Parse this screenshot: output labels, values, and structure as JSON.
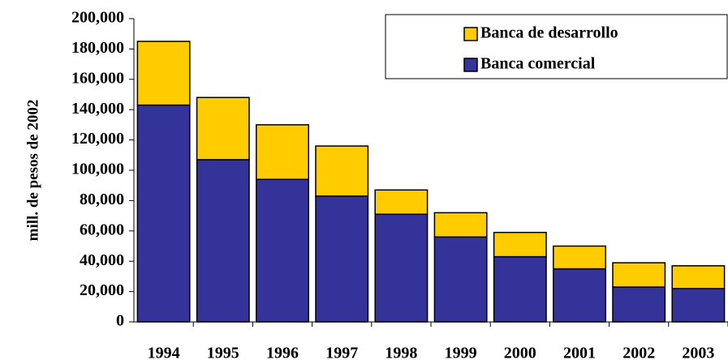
{
  "chart_data": {
    "type": "stacked-bar",
    "y_label": "mill. de pesos de 2002",
    "categories": [
      "1994",
      "1995",
      "1996",
      "1997",
      "1998",
      "1999",
      "2000",
      "2001",
      "2002",
      "2003"
    ],
    "series": [
      {
        "name": "Banca comercial",
        "color": "#333399",
        "values": [
          143000,
          107000,
          94000,
          83000,
          71000,
          56000,
          43000,
          35000,
          23000,
          22000
        ]
      },
      {
        "name": "Banca de desarrollo",
        "color": "#ffcc00",
        "values": [
          42000,
          41000,
          36000,
          33000,
          16000,
          16000,
          16000,
          15000,
          16000,
          15000
        ]
      }
    ],
    "ylim": [
      0,
      200000
    ],
    "yticks": [
      0,
      {
        "value": 20000,
        "label": "20,000"
      },
      {
        "value": 40000,
        "label": "40,000"
      },
      {
        "value": 60000,
        "label": "60,000"
      },
      {
        "value": 80000,
        "label": "80,000"
      },
      {
        "value": 100000,
        "label": "100,000"
      },
      {
        "value": 120000,
        "label": "120,000"
      },
      {
        "value": 140000,
        "label": "140,000"
      },
      {
        "value": 160000,
        "label": "160,000"
      },
      {
        "value": 180000,
        "label": "180,000"
      },
      {
        "value": 200000,
        "label": "200,000"
      }
    ],
    "legend": "upper right"
  }
}
